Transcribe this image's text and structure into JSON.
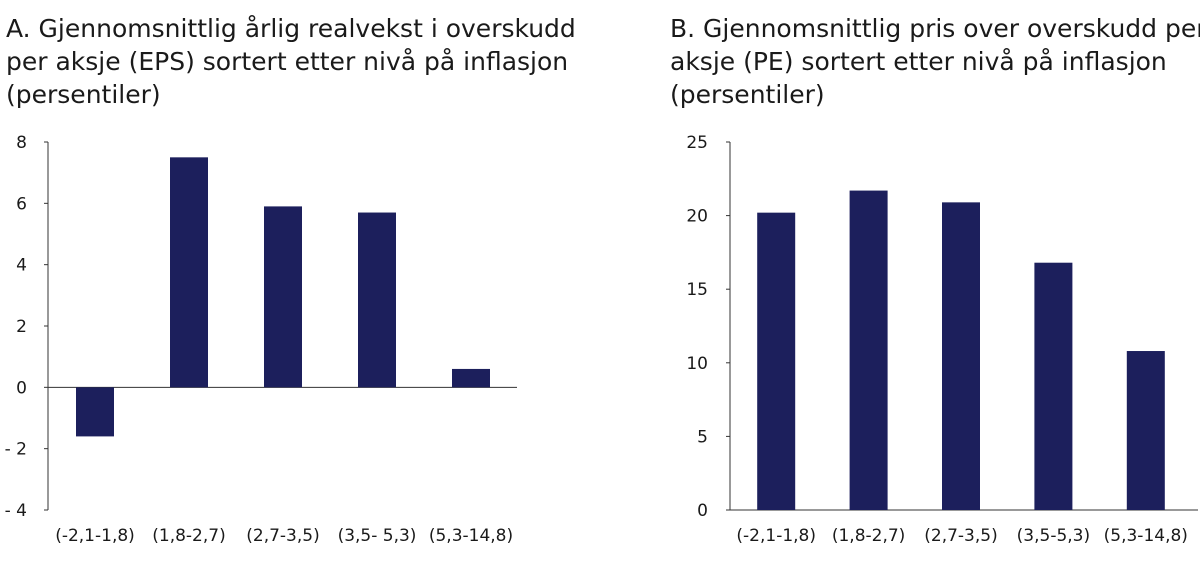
{
  "colors": {
    "bar": "#1c1f5c",
    "axis": "#333333"
  },
  "chart_data": [
    {
      "type": "bar",
      "title_lines": [
        "A. Gjennomsnittlig årlig realvekst i overskudd",
        "per aksje (EPS) sortert etter nivå på inflasjon",
        "(persentiler)"
      ],
      "categories": [
        "(-2,1-1,8)",
        "(1,8-2,7)",
        "(2,7-3,5)",
        "(3,5- 5,3)",
        "(5,3-14,8)"
      ],
      "values": [
        -1.6,
        7.5,
        5.9,
        5.7,
        0.6
      ],
      "ylim": [
        -4,
        8
      ],
      "yticks": [
        8,
        6,
        4,
        2,
        0,
        -2,
        -4
      ],
      "ytick_labels": [
        "8",
        "6",
        "4",
        "2",
        "0",
        "- 2",
        "- 4"
      ],
      "xlabel": "",
      "ylabel": ""
    },
    {
      "type": "bar",
      "title_lines": [
        "B. Gjennomsnittlig pris over overskudd per",
        "aksje (PE) sortert etter nivå på inflasjon",
        "(persentiler)"
      ],
      "categories": [
        "(-2,1-1,8)",
        "(1,8-2,7)",
        "(2,7-3,5)",
        "(3,5-5,3)",
        "(5,3-14,8)"
      ],
      "values": [
        20.2,
        21.7,
        20.9,
        16.8,
        10.8
      ],
      "ylim": [
        0,
        25
      ],
      "yticks": [
        25,
        20,
        15,
        10,
        5,
        0
      ],
      "ytick_labels": [
        "25",
        "20",
        "15",
        "10",
        "5",
        "0"
      ],
      "xlabel": "",
      "ylabel": ""
    }
  ]
}
